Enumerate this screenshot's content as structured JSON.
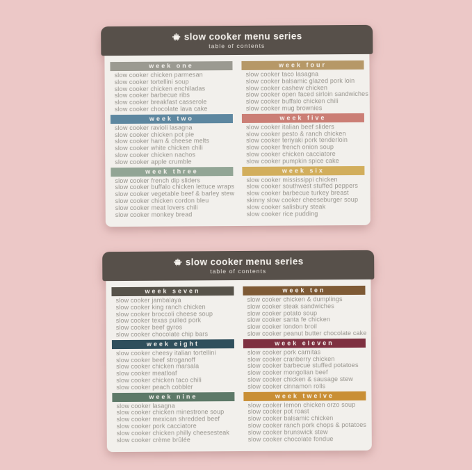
{
  "page": {
    "background_color": "#ecc8c7",
    "card_color": "#f2f0ec"
  },
  "header": {
    "title": "slow cooker menu series",
    "subtitle": "table of contents",
    "icon": "slow-cooker-icon",
    "background_color": "#57504a",
    "text_color": "#f6f3ee"
  },
  "cards": [
    {
      "weeks": [
        {
          "label": "week one",
          "color": "#9b9a91",
          "items": [
            "slow cooker chicken parmesan",
            "slow cooker tortellini soup",
            "slow cooker chicken enchiladas",
            "slow cooker barbecue ribs",
            "slow cooker breakfast casserole",
            "slow cooker chocolate lava cake"
          ]
        },
        {
          "label": "week two",
          "color": "#5d87a0",
          "items": [
            "slow cooker ravioli lasagna",
            "slow cooker chicken pot pie",
            "slow cooker ham & cheese melts",
            "slow cooker white chicken chili",
            "slow cooker chicken nachos",
            "slow cooker apple crumble"
          ]
        },
        {
          "label": "week three",
          "color": "#92a595",
          "items": [
            "slow cooker french dip sliders",
            "slow cooker buffalo chicken lettuce wraps",
            "slow cooker vegetable beef & barley stew",
            "slow cooker chicken cordon bleu",
            "slow cooker meat lovers chili",
            "slow cooker monkey bread"
          ]
        },
        {
          "label": "week four",
          "color": "#b69867",
          "items": [
            "slow cooker taco lasagna",
            "slow cooker balsamic glazed pork loin",
            "slow cooker cashew chicken",
            "slow cooker open faced sirloin sandwiches",
            "slow cooker buffalo chicken chili",
            "slow cooker mug brownies"
          ]
        },
        {
          "label": "week five",
          "color": "#cb7e75",
          "items": [
            "slow cooker italian beef sliders",
            "slow cooker pesto & ranch chicken",
            "slow cooker teriyaki pork tenderloin",
            "slow cooker french onion soup",
            "slow cooker chicken cacciatore",
            "slow cooker pumpkin spice cake"
          ]
        },
        {
          "label": "week six",
          "color": "#d2ae5c",
          "items": [
            "slow cooker mississippi chicken",
            "slow cooker southwest stuffed peppers",
            "slow cooker barbecue turkey breast",
            "skinny slow cooker cheeseburger soup",
            "slow cooker salisbury steak",
            "slow cooker rice pudding"
          ]
        }
      ]
    },
    {
      "weeks": [
        {
          "label": "week seven",
          "color": "#57534a",
          "items": [
            "slow cooker jambalaya",
            "slow cooker king ranch chicken",
            "slow cooker broccoli cheese soup",
            "slow cooker texas pulled pork",
            "slow cooker beef gyros",
            "slow cooker chocolate chip bars"
          ]
        },
        {
          "label": "week eight",
          "color": "#2f4f5c",
          "items": [
            "slow cooker cheesy italian tortellini",
            "slow cooker beef stroganoff",
            "slow cooker chicken marsala",
            "slow cooker meatloaf",
            "slow cooker chicken taco chili",
            "slow cooker peach cobbler"
          ]
        },
        {
          "label": "week nine",
          "color": "#5d7968",
          "items": [
            "slow cooker lasagna",
            "slow cooker chicken minestrone soup",
            "slow cooker mexican shredded beef",
            "slow cooker pork cacciatore",
            "slow cooker chicken philly cheesesteak",
            "slow cooker crème brûlée"
          ]
        },
        {
          "label": "week ten",
          "color": "#7e5a35",
          "items": [
            "slow cooker chicken & dumplings",
            "slow cooker steak sandwiches",
            "slow cooker potato soup",
            "slow cooker santa fe chicken",
            "slow cooker london broil",
            "slow cooker peanut butter chocolate cake"
          ]
        },
        {
          "label": "week eleven",
          "color": "#7e3040",
          "items": [
            "slow cooker pork carnitas",
            "slow cooker cranberry chicken",
            "slow cooker barbecue stuffed potatoes",
            "slow cooker mongolian beef",
            "slow cooker chicken & sausage stew",
            "slow cooker cinnamon rolls"
          ]
        },
        {
          "label": "week twelve",
          "color": "#c98f35",
          "items": [
            "slow cooker lemon chicken orzo soup",
            "slow cooker pot roast",
            "slow cooker balsamic chicken",
            "slow cooker ranch pork chops & potatoes",
            "slow cooker brunswick stew",
            "slow cooker chocolate fondue"
          ]
        }
      ]
    }
  ]
}
